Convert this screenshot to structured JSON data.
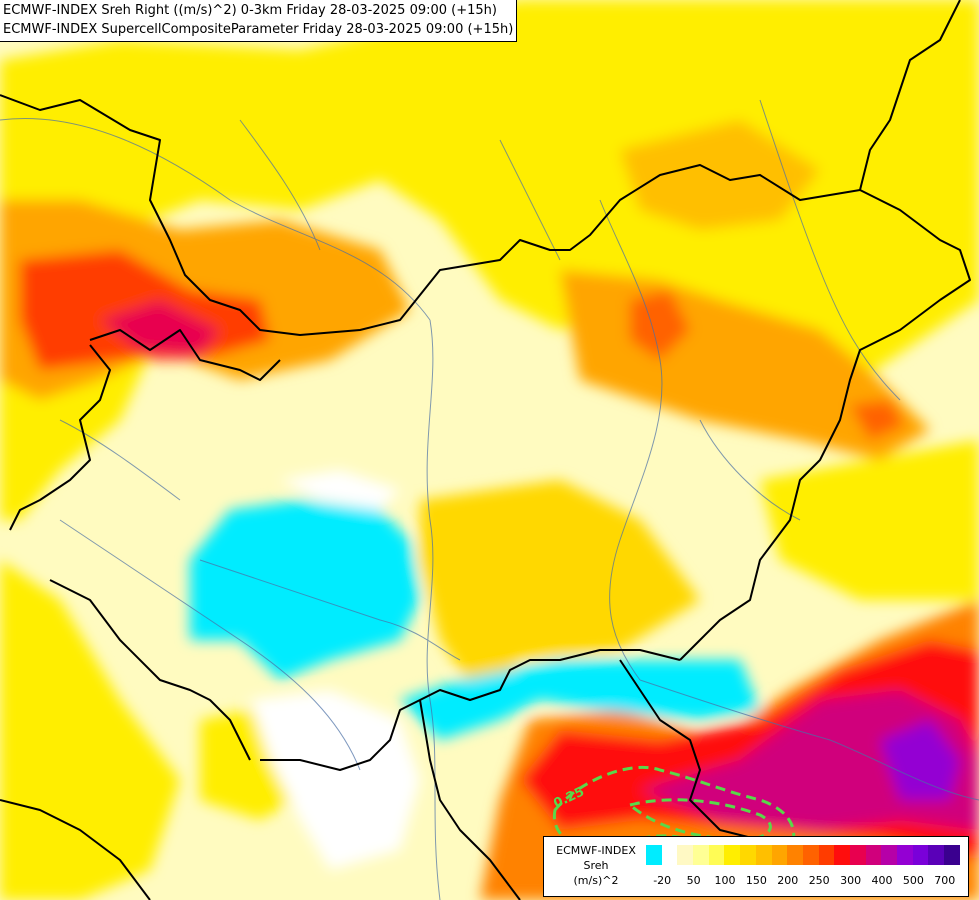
{
  "header": {
    "line1": "ECMWF-INDEX Sreh Right ((m/s)^2) 0-3km Friday 28-03-2025 09:00 (+15h)",
    "line2": "ECMWF-INDEX SupercellCompositeParameter Friday 28-03-2025 09:00 (+15h)"
  },
  "contour_label": "0.25",
  "legend": {
    "title_lines": [
      "ECMWF-INDEX",
      "Sreh",
      "(m/s)^2"
    ],
    "colors": [
      "#00ecff",
      "#ffffff",
      "#fff9c4",
      "#ffff95",
      "#fffc55",
      "#ffee00",
      "#ffd800",
      "#ffbf00",
      "#ffa500",
      "#ff8200",
      "#ff6200",
      "#ff3c00",
      "#ff0d0d",
      "#e8004f",
      "#d0007c",
      "#b600a8",
      "#9400d3",
      "#7a00d9",
      "#5a00b8",
      "#3a008f"
    ],
    "ticks": [
      "-20",
      "50",
      "100",
      "150",
      "200",
      "250",
      "300",
      "400",
      "500",
      "700"
    ],
    "tick_swatch_index": [
      1,
      3,
      5,
      7,
      9,
      11,
      13,
      15,
      17,
      19
    ]
  }
}
